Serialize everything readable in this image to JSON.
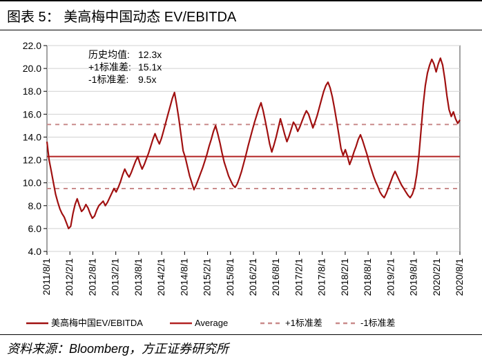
{
  "title": "图表 5：  美高梅中国动态 EV/EBITDA",
  "source": "资料来源：Bloomberg，方正证券研究所",
  "chart": {
    "type": "line",
    "background_color": "#ffffff",
    "plot_border_color": "#444444",
    "grid_color": "#d0d0d0",
    "axis_color": "#000000",
    "ylim": [
      4.0,
      22.0
    ],
    "ytick_step": 2.0,
    "yticks": [
      4.0,
      6.0,
      8.0,
      10.0,
      12.0,
      14.0,
      16.0,
      18.0,
      20.0,
      22.0
    ],
    "xticks": [
      "2011/8/1",
      "2012/2/1",
      "2012/8/1",
      "2013/2/1",
      "2013/8/1",
      "2014/2/1",
      "2014/8/1",
      "2015/2/1",
      "2015/8/1",
      "2016/2/1",
      "2016/8/1",
      "2017/2/1",
      "2017/8/1",
      "2018/2/1",
      "2018/8/1",
      "2019/2/1",
      "2019/8/1",
      "2020/2/1",
      "2020/8/1"
    ],
    "stats": {
      "label_avg": "历史均值:",
      "value_avg": "12.3x",
      "label_p1sd": "+1标准差:",
      "value_p1sd": "15.1x",
      "label_m1sd": "-1标准差:",
      "value_m1sd": "9.5x"
    },
    "avg_line": {
      "value": 12.3,
      "color": "#b22222",
      "width": 2,
      "dash": "none"
    },
    "p1sd_line": {
      "value": 15.1,
      "color": "#c98b8b",
      "width": 2,
      "dash": "6,6"
    },
    "m1sd_line": {
      "value": 9.5,
      "color": "#c98b8b",
      "width": 2,
      "dash": "6,6"
    },
    "series": {
      "name": "美高梅中国EV/EBITDA",
      "color": "#a01010",
      "width": 2.2,
      "data": [
        13.6,
        12.0,
        11.0,
        10.0,
        9.0,
        8.3,
        7.7,
        7.3,
        7.0,
        6.5,
        6.0,
        6.2,
        7.3,
        8.1,
        8.6,
        8.0,
        7.5,
        7.7,
        8.1,
        7.8,
        7.3,
        6.9,
        7.1,
        7.6,
        8.0,
        8.2,
        8.4,
        8.0,
        8.3,
        8.7,
        9.1,
        9.5,
        9.2,
        9.6,
        10.1,
        10.7,
        11.2,
        10.8,
        10.5,
        10.9,
        11.4,
        11.9,
        12.3,
        11.7,
        11.2,
        11.6,
        12.1,
        12.6,
        13.2,
        13.8,
        14.3,
        13.8,
        13.4,
        13.9,
        14.6,
        15.3,
        16.0,
        16.7,
        17.4,
        17.9,
        16.8,
        15.6,
        14.2,
        12.8,
        12.2,
        11.4,
        10.6,
        10.0,
        9.4,
        9.8,
        10.3,
        10.8,
        11.3,
        11.9,
        12.5,
        13.2,
        13.8,
        14.5,
        15.0,
        14.3,
        13.5,
        12.6,
        11.8,
        11.2,
        10.6,
        10.2,
        9.8,
        9.6,
        9.9,
        10.4,
        11.0,
        11.7,
        12.4,
        13.2,
        13.9,
        14.6,
        15.3,
        15.9,
        16.5,
        17.0,
        16.3,
        15.4,
        14.4,
        13.4,
        12.7,
        13.3,
        14.0,
        14.8,
        15.6,
        14.9,
        14.2,
        13.6,
        14.1,
        14.7,
        15.3,
        15.0,
        14.5,
        14.9,
        15.4,
        15.9,
        16.3,
        16.0,
        15.4,
        14.8,
        15.3,
        15.9,
        16.6,
        17.3,
        18.0,
        18.5,
        18.8,
        18.3,
        17.5,
        16.5,
        15.4,
        14.2,
        13.0,
        12.4,
        12.9,
        12.3,
        11.6,
        12.1,
        12.7,
        13.2,
        13.8,
        14.2,
        13.7,
        13.1,
        12.5,
        11.8,
        11.2,
        10.6,
        10.1,
        9.7,
        9.2,
        8.9,
        8.7,
        9.1,
        9.6,
        10.1,
        10.6,
        11.0,
        10.6,
        10.2,
        9.8,
        9.5,
        9.2,
        8.9,
        8.7,
        9.0,
        9.6,
        10.7,
        12.3,
        14.5,
        16.8,
        18.5,
        19.6,
        20.3,
        20.8,
        20.4,
        19.7,
        20.4,
        20.9,
        20.3,
        19.1,
        17.6,
        16.4,
        15.8,
        16.2,
        15.6,
        15.2,
        15.5
      ]
    },
    "legend": {
      "items": [
        {
          "label": "美高梅中国EV/EBITDA",
          "style": "solid",
          "color": "#a01010"
        },
        {
          "label": "Average",
          "style": "solid",
          "color": "#b22222"
        },
        {
          "label": "+1标准差",
          "style": "dash",
          "color": "#c98b8b"
        },
        {
          "label": "-1标准差",
          "style": "dash",
          "color": "#c98b8b"
        }
      ]
    }
  }
}
